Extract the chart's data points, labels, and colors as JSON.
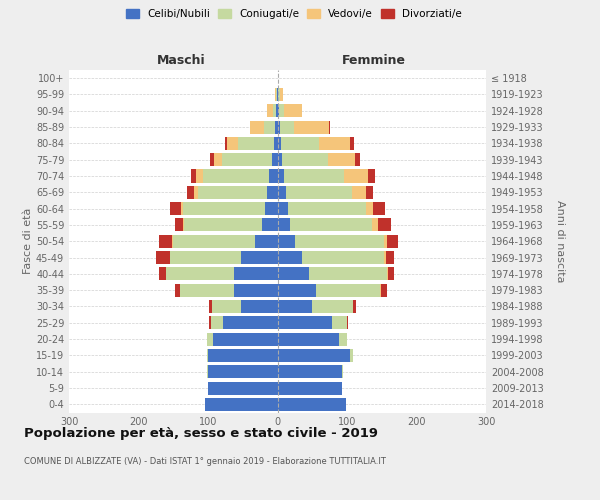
{
  "age_groups": [
    "0-4",
    "5-9",
    "10-14",
    "15-19",
    "20-24",
    "25-29",
    "30-34",
    "35-39",
    "40-44",
    "45-49",
    "50-54",
    "55-59",
    "60-64",
    "65-69",
    "70-74",
    "75-79",
    "80-84",
    "85-89",
    "90-94",
    "95-99",
    "100+"
  ],
  "birth_years": [
    "2014-2018",
    "2009-2013",
    "2004-2008",
    "1999-2003",
    "1994-1998",
    "1989-1993",
    "1984-1988",
    "1979-1983",
    "1974-1978",
    "1969-1973",
    "1964-1968",
    "1959-1963",
    "1954-1958",
    "1949-1953",
    "1944-1948",
    "1939-1943",
    "1934-1938",
    "1929-1933",
    "1924-1928",
    "1919-1923",
    "≤ 1918"
  ],
  "male_celibi": [
    105,
    100,
    100,
    100,
    93,
    78,
    52,
    62,
    62,
    52,
    32,
    22,
    18,
    15,
    12,
    8,
    5,
    4,
    2,
    1,
    0
  ],
  "male_coniugati": [
    0,
    0,
    1,
    2,
    8,
    18,
    42,
    78,
    98,
    102,
    118,
    112,
    118,
    100,
    95,
    72,
    52,
    15,
    5,
    1,
    0
  ],
  "male_vedovi": [
    0,
    0,
    0,
    0,
    0,
    0,
    0,
    0,
    1,
    1,
    2,
    2,
    3,
    5,
    10,
    12,
    15,
    20,
    8,
    1,
    0
  ],
  "male_divorziati": [
    0,
    0,
    0,
    0,
    0,
    2,
    5,
    8,
    10,
    20,
    18,
    12,
    15,
    10,
    8,
    5,
    3,
    0,
    0,
    0,
    0
  ],
  "female_nubili": [
    98,
    93,
    93,
    105,
    88,
    78,
    50,
    55,
    45,
    35,
    25,
    18,
    15,
    12,
    10,
    7,
    5,
    4,
    2,
    1,
    0
  ],
  "female_coniugate": [
    0,
    0,
    1,
    4,
    12,
    22,
    58,
    93,
    112,
    118,
    128,
    118,
    112,
    95,
    85,
    65,
    55,
    20,
    8,
    2,
    0
  ],
  "female_vedove": [
    0,
    0,
    0,
    0,
    0,
    0,
    0,
    1,
    2,
    3,
    5,
    8,
    10,
    20,
    35,
    40,
    45,
    50,
    25,
    5,
    1
  ],
  "female_divorziate": [
    0,
    0,
    0,
    0,
    0,
    2,
    5,
    8,
    8,
    12,
    15,
    20,
    18,
    10,
    10,
    7,
    5,
    2,
    0,
    0,
    0
  ],
  "color_celibi": "#4472C4",
  "color_coniugati": "#C5D9A0",
  "color_vedovi": "#F5C57A",
  "color_divorziati": "#C0312B",
  "xlim": 300,
  "title": "Popolazione per età, sesso e stato civile - 2019",
  "subtitle": "COMUNE DI ALBIZZATE (VA) - Dati ISTAT 1° gennaio 2019 - Elaborazione TUTTITALIA.IT",
  "ylabel_left": "Fasce di età",
  "ylabel_right": "Anni di nascita",
  "label_maschi": "Maschi",
  "label_femmine": "Femmine",
  "legend_labels": [
    "Celibi/Nubili",
    "Coniugati/e",
    "Vedovi/e",
    "Divorziati/e"
  ],
  "bg_color": "#eeeeee",
  "plot_bg_color": "#ffffff",
  "grid_color": "#cccccc",
  "xticks": [
    -300,
    -200,
    -100,
    0,
    100,
    200,
    300
  ]
}
